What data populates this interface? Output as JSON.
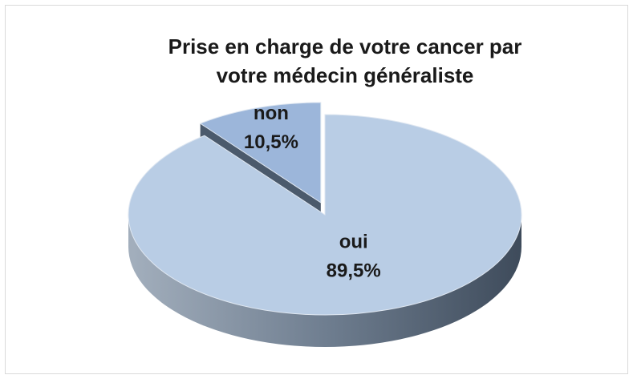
{
  "chart_data": {
    "type": "pie",
    "title": "Prise en charge de votre cancer par votre médecin généraliste",
    "categories": [
      "oui",
      "non"
    ],
    "values": [
      89.5,
      10.5
    ],
    "value_labels": [
      "89,5%",
      "10,5%"
    ],
    "colors": [
      "#b9cde5",
      "#9cb6da"
    ]
  }
}
